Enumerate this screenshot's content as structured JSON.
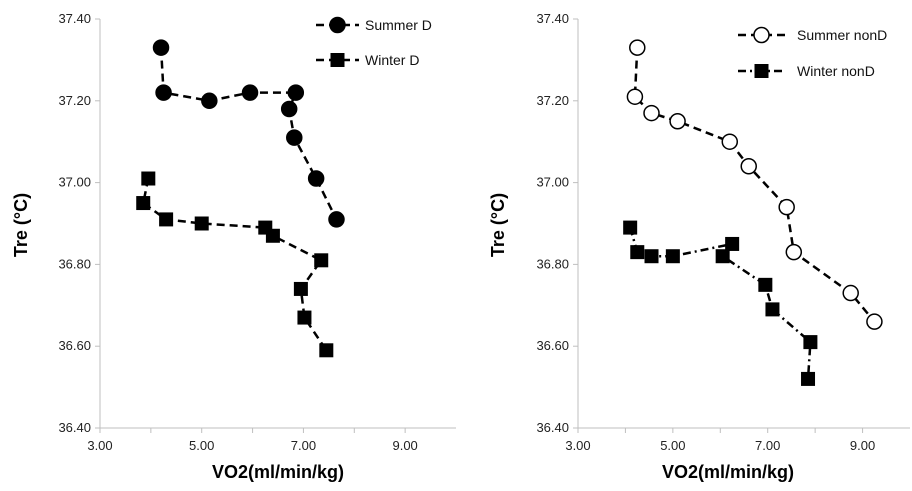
{
  "chart_data": [
    {
      "type": "scatter",
      "title": "",
      "xlabel": "VO2(ml/min/kg)",
      "ylabel": "Tre (°C)",
      "xlim": [
        3.0,
        10.0
      ],
      "ylim": [
        36.4,
        37.4
      ],
      "xticks": [
        3.0,
        5.0,
        7.0,
        9.0
      ],
      "xtick_labels": [
        "3.00",
        "5.00",
        "7.00",
        "9.00"
      ],
      "yticks": [
        36.4,
        36.6,
        36.8,
        37.0,
        37.2,
        37.4
      ],
      "ytick_labels": [
        "36.40",
        "36.60",
        "36.80",
        "37.00",
        "37.20",
        "37.40"
      ],
      "legend_position": "top-right",
      "grid": false,
      "series": [
        {
          "name": "Summer D",
          "marker": "circle",
          "fill": "#000000",
          "line": "dashed",
          "points": [
            [
              4.2,
              37.33
            ],
            [
              4.25,
              37.22
            ],
            [
              5.15,
              37.2
            ],
            [
              5.95,
              37.22
            ],
            [
              6.85,
              37.22
            ],
            [
              6.72,
              37.18
            ],
            [
              6.82,
              37.11
            ],
            [
              7.25,
              37.01
            ],
            [
              7.65,
              36.91
            ]
          ]
        },
        {
          "name": "Winter D",
          "marker": "square",
          "fill": "#000000",
          "line": "dashed",
          "points": [
            [
              3.95,
              37.01
            ],
            [
              3.85,
              36.95
            ],
            [
              4.3,
              36.91
            ],
            [
              5.0,
              36.9
            ],
            [
              6.25,
              36.89
            ],
            [
              6.4,
              36.87
            ],
            [
              7.35,
              36.81
            ],
            [
              6.95,
              36.74
            ],
            [
              7.02,
              36.67
            ],
            [
              7.45,
              36.59
            ]
          ]
        }
      ]
    },
    {
      "type": "scatter",
      "title": "",
      "xlabel": "VO2(ml/min/kg)",
      "ylabel": "Tre (°C)",
      "xlim": [
        3.0,
        10.0
      ],
      "ylim": [
        36.4,
        37.4
      ],
      "xticks": [
        3.0,
        5.0,
        7.0,
        9.0
      ],
      "xtick_labels": [
        "3.00",
        "5.00",
        "7.00",
        "9.00"
      ],
      "yticks": [
        36.4,
        36.6,
        36.8,
        37.0,
        37.2,
        37.4
      ],
      "ytick_labels": [
        "36.40",
        "36.60",
        "36.80",
        "37.00",
        "37.20",
        "37.40"
      ],
      "legend_position": "top-right",
      "grid": false,
      "series": [
        {
          "name": "Summer nonD",
          "marker": "circle",
          "fill": "#ffffff",
          "line": "dashed",
          "points": [
            [
              4.25,
              37.33
            ],
            [
              4.2,
              37.21
            ],
            [
              4.55,
              37.17
            ],
            [
              5.1,
              37.15
            ],
            [
              6.2,
              37.1
            ],
            [
              6.6,
              37.04
            ],
            [
              7.4,
              36.94
            ],
            [
              7.55,
              36.83
            ],
            [
              8.75,
              36.73
            ],
            [
              9.25,
              36.66
            ]
          ]
        },
        {
          "name": "Winter nonD",
          "marker": "square",
          "fill": "#000000",
          "line": "dash-dot",
          "points": [
            [
              4.1,
              36.89
            ],
            [
              4.25,
              36.83
            ],
            [
              4.55,
              36.82
            ],
            [
              5.0,
              36.82
            ],
            [
              6.25,
              36.85
            ],
            [
              6.05,
              36.82
            ],
            [
              6.95,
              36.75
            ],
            [
              7.1,
              36.69
            ],
            [
              7.9,
              36.61
            ],
            [
              7.85,
              36.52
            ]
          ]
        }
      ]
    }
  ]
}
